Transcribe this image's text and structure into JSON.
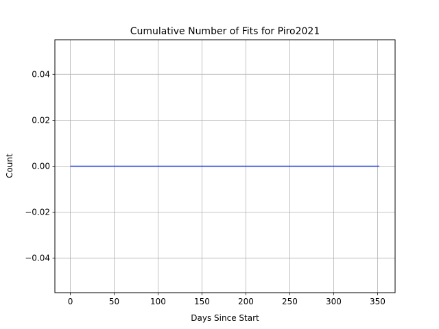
{
  "chart_data": {
    "type": "line",
    "title": "Cumulative Number of Fits for Piro2021",
    "xlabel": "Days Since Start",
    "ylabel": "Count",
    "xlim": [
      -17.6,
      370
    ],
    "ylim": [
      -0.055,
      0.055
    ],
    "xticks": [
      0,
      50,
      100,
      150,
      200,
      250,
      300,
      350
    ],
    "xtick_labels": [
      "0",
      "50",
      "100",
      "150",
      "200",
      "250",
      "300",
      "350"
    ],
    "yticks": [
      -0.04,
      -0.02,
      0.0,
      0.02,
      0.04
    ],
    "ytick_labels": [
      "−0.04",
      "−0.02",
      "0.00",
      "0.02",
      "0.04"
    ],
    "grid": true,
    "series": [
      {
        "color": "#1f3fd6",
        "x": [
          0,
          352
        ],
        "y": [
          0,
          0
        ]
      }
    ]
  }
}
